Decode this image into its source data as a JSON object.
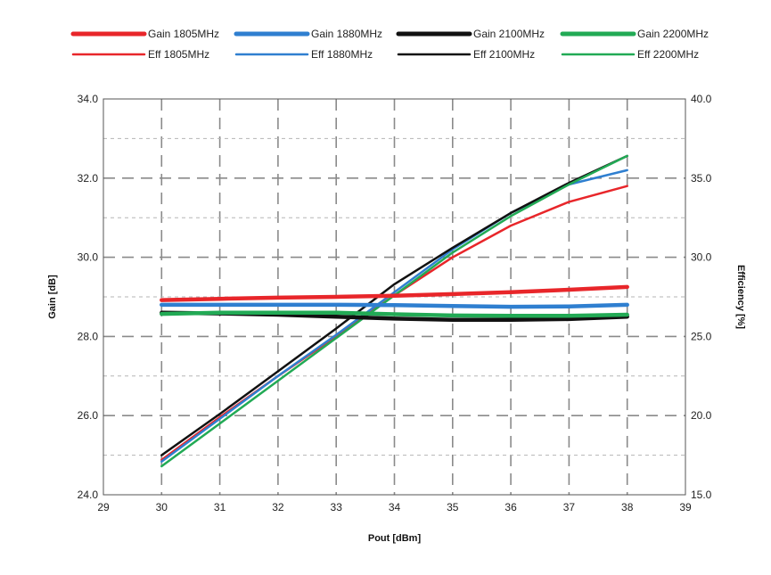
{
  "chart_data": {
    "type": "line",
    "xlabel": "Pout [dBm]",
    "ylabel": "Gain [dB]",
    "y2label": "Efficiency [%]",
    "xlim": [
      29,
      39
    ],
    "ylim": [
      24,
      34
    ],
    "y2lim": [
      15,
      40
    ],
    "xticks": [
      "29",
      "30",
      "31",
      "32",
      "33",
      "34",
      "35",
      "36",
      "37",
      "38",
      "39"
    ],
    "yticks": [
      "24.0",
      "26.0",
      "28.0",
      "30.0",
      "32.0",
      "34.0"
    ],
    "y2ticks": [
      "15.0",
      "20.0",
      "25.0",
      "30.0",
      "35.0",
      "40.0"
    ],
    "grid": true,
    "legend_position": "top",
    "x": [
      30,
      31,
      32,
      33,
      34,
      35,
      36,
      37,
      38
    ],
    "series": [
      {
        "name": "Gain 1805MHz",
        "axis": "left",
        "color": "#e8262a",
        "style": "thick",
        "values": [
          28.92,
          28.95,
          28.98,
          29.0,
          29.03,
          29.07,
          29.12,
          29.18,
          29.25
        ]
      },
      {
        "name": "Gain 1880MHz",
        "axis": "left",
        "color": "#2f7fd0",
        "style": "thick",
        "values": [
          28.8,
          28.8,
          28.8,
          28.8,
          28.79,
          28.77,
          28.75,
          28.76,
          28.8
        ]
      },
      {
        "name": "Gain 2100MHz",
        "axis": "left",
        "color": "#111111",
        "style": "thick",
        "values": [
          28.6,
          28.58,
          28.55,
          28.5,
          28.45,
          28.42,
          28.42,
          28.44,
          28.5
        ]
      },
      {
        "name": "Gain 2200MHz",
        "axis": "left",
        "color": "#22aa55",
        "style": "thick",
        "values": [
          28.57,
          28.6,
          28.6,
          28.6,
          28.56,
          28.53,
          28.52,
          28.52,
          28.55
        ]
      },
      {
        "name": "Eff 1805MHz",
        "axis": "right",
        "color": "#e8262a",
        "style": "thin",
        "values": [
          17.2,
          19.9,
          22.5,
          25.0,
          27.6,
          30.0,
          32.0,
          33.5,
          34.5
        ]
      },
      {
        "name": "Eff 1880MHz",
        "axis": "right",
        "color": "#2f7fd0",
        "style": "thin",
        "values": [
          17.1,
          19.8,
          22.5,
          25.1,
          27.8,
          30.5,
          32.8,
          34.6,
          35.5
        ]
      },
      {
        "name": "Eff 2100MHz",
        "axis": "right",
        "color": "#111111",
        "style": "thin",
        "values": [
          17.5,
          20.1,
          22.8,
          25.5,
          28.3,
          30.6,
          32.8,
          34.7,
          36.4
        ]
      },
      {
        "name": "Eff 2200MHz",
        "axis": "right",
        "color": "#22aa55",
        "style": "thin",
        "values": [
          16.8,
          19.5,
          22.2,
          24.9,
          27.6,
          30.3,
          32.6,
          34.6,
          36.4
        ]
      }
    ]
  }
}
